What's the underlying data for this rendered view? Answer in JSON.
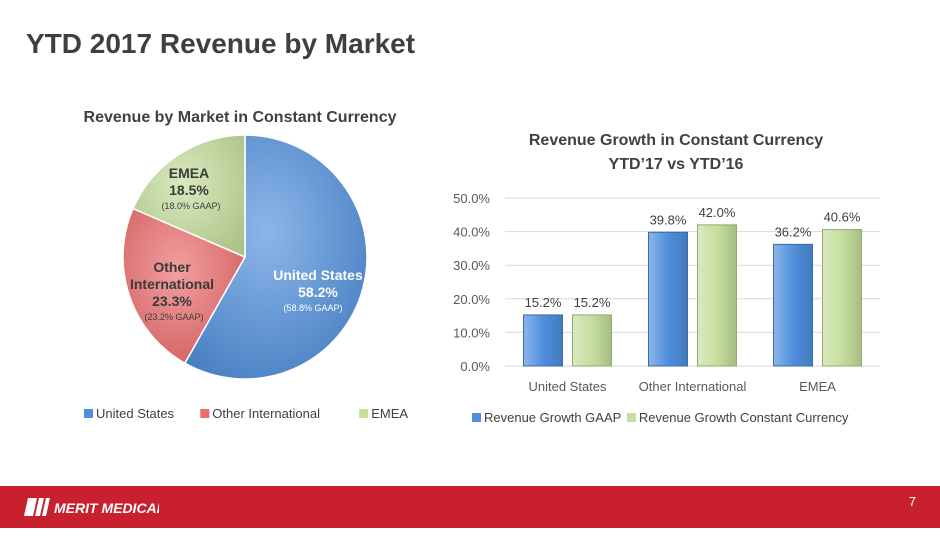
{
  "page": {
    "title": "YTD 2017 Revenue by Market",
    "page_number": "7"
  },
  "brand": {
    "logo_text": "MERIT MEDICAL",
    "accent": "#c8202f"
  },
  "chart_data": [
    {
      "type": "pie",
      "title": "Revenue by Market in Constant Currency",
      "slices": [
        {
          "name": "United States",
          "label_lines": [
            "United States"
          ],
          "value": 58.2,
          "value_label": "58.2%",
          "gaap_label": "(58.8% GAAP)",
          "color": "#4f8fdd"
        },
        {
          "name": "Other International",
          "label_lines": [
            "Other",
            "International"
          ],
          "value": 23.3,
          "value_label": "23.3%",
          "gaap_label": "(23.2% GAAP)",
          "color": "#ec6b6b"
        },
        {
          "name": "EMEA",
          "label_lines": [
            "EMEA"
          ],
          "value": 18.5,
          "value_label": "18.5%",
          "gaap_label": "(18.0% GAAP)",
          "color": "#c5de9c"
        }
      ],
      "legend": {
        "position": "bottom",
        "entries": [
          "United States",
          "Other International",
          "EMEA"
        ]
      }
    },
    {
      "type": "bar",
      "title_lines": [
        "Revenue Growth in Constant Currency",
        "YTD’17 vs YTD’16"
      ],
      "categories": [
        "United States",
        "Other International",
        "EMEA"
      ],
      "series": [
        {
          "name": "Revenue Growth GAAP",
          "values": [
            15.2,
            39.8,
            36.2
          ],
          "labels": [
            "15.2%",
            "39.8%",
            "36.2%"
          ],
          "color": "#4f8fdd"
        },
        {
          "name": "Revenue Growth Constant Currency",
          "values": [
            15.2,
            42.0,
            40.6
          ],
          "labels": [
            "15.2%",
            "42.0%",
            "40.6%"
          ],
          "color": "#c5de9c"
        }
      ],
      "ylim": [
        0,
        50
      ],
      "yticks": [
        "0.0%",
        "10.0%",
        "20.0%",
        "30.0%",
        "40.0%",
        "50.0%"
      ],
      "grid": true,
      "legend": {
        "position": "bottom"
      }
    }
  ]
}
